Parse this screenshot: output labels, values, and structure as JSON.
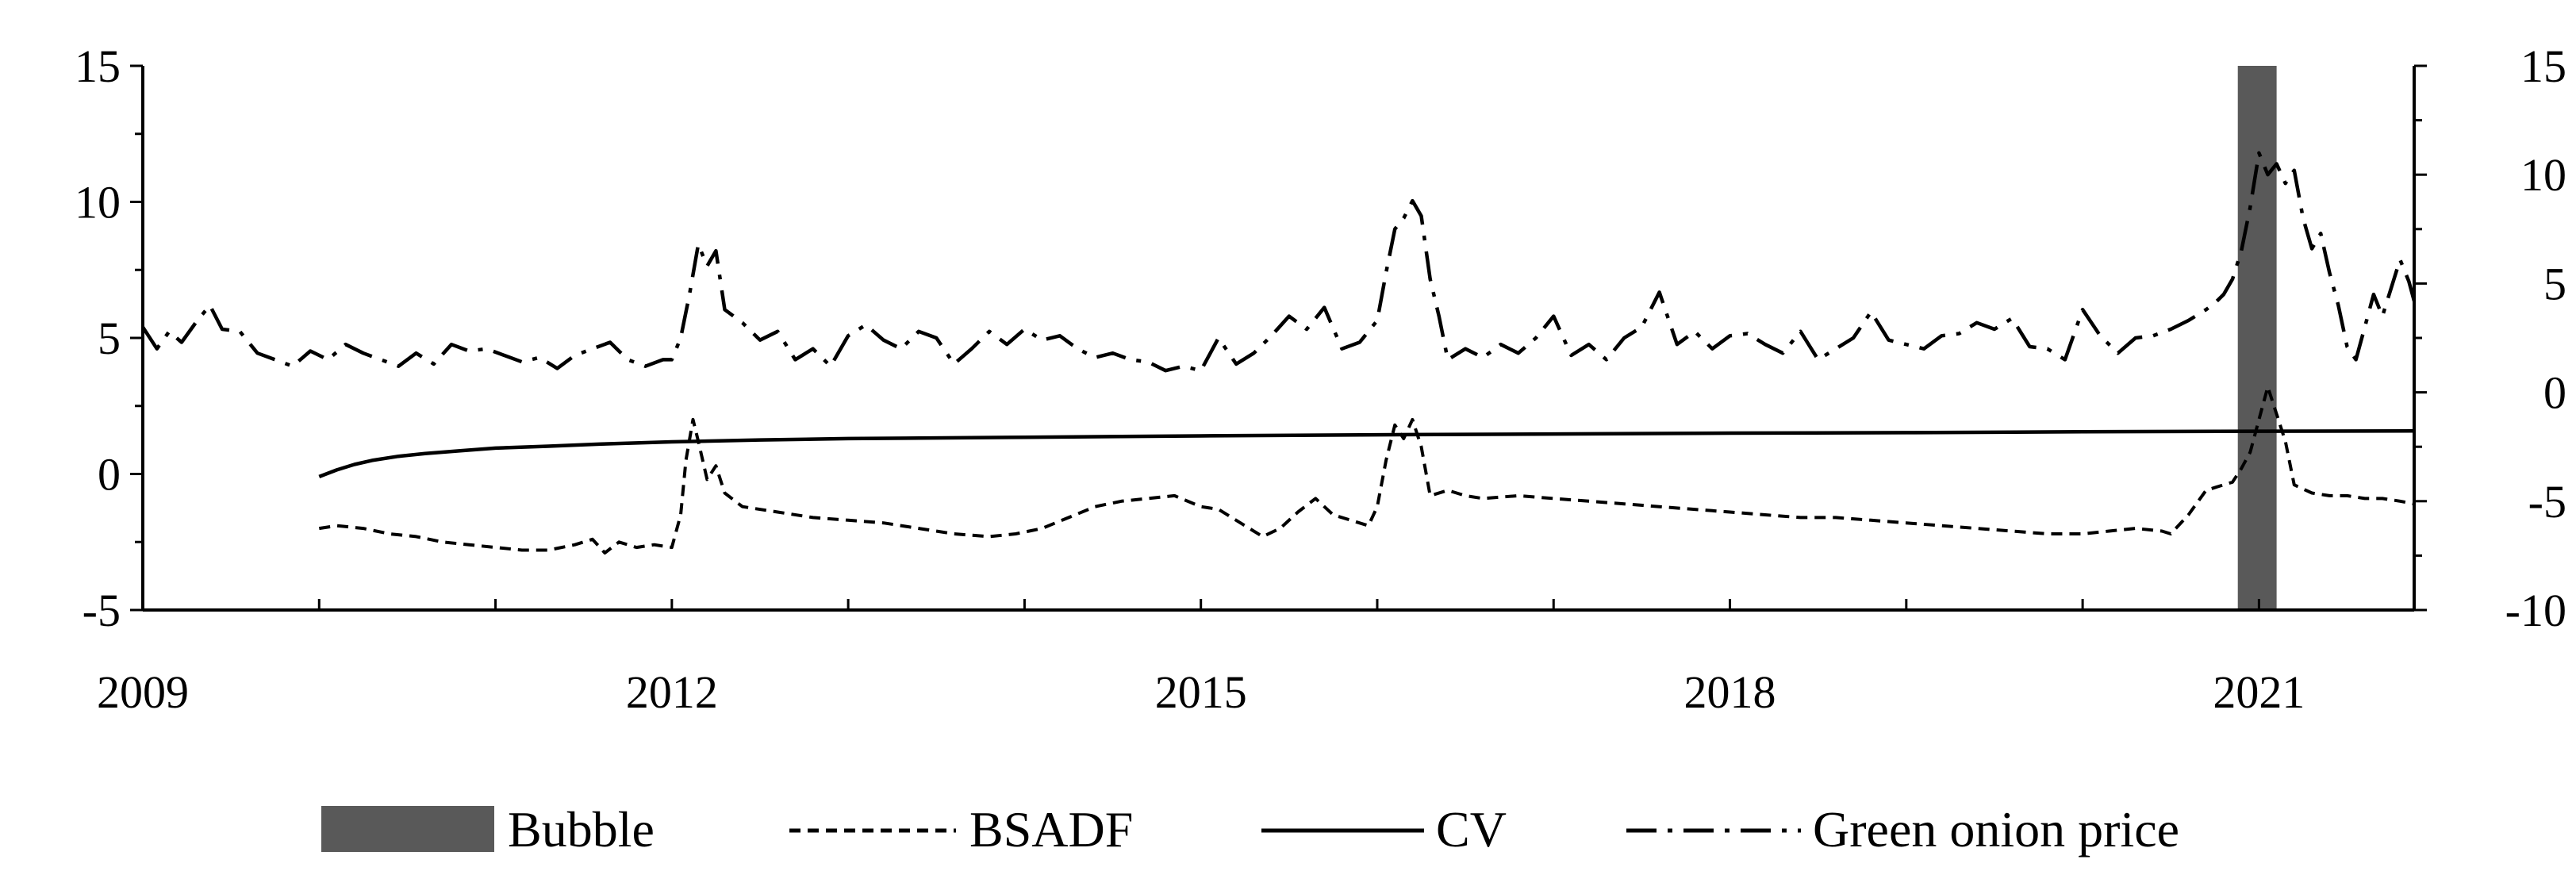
{
  "chart_data": {
    "type": "line",
    "title": "",
    "xlabel": "",
    "ylabel": "",
    "x_range": [
      2009.0,
      2021.88
    ],
    "ylim_left": [
      -5,
      15
    ],
    "ylim_right": [
      -10,
      15
    ],
    "yticks_left": [
      "15",
      "10",
      "5",
      "0",
      "-5"
    ],
    "yticks_right": [
      "15",
      "10",
      "5",
      "0",
      "-5",
      "-10"
    ],
    "xticks": [
      {
        "x": 2009,
        "label": "2009"
      },
      {
        "x": 2012,
        "label": "2012"
      },
      {
        "x": 2015,
        "label": "2015"
      },
      {
        "x": 2018,
        "label": "2018"
      },
      {
        "x": 2021,
        "label": "2021"
      }
    ],
    "minor_xticks": [
      2010,
      2011,
      2013,
      2014,
      2016,
      2017,
      2019,
      2020
    ],
    "grid": false,
    "legend_position": "bottom",
    "legend": [
      "Bubble",
      "BSADF",
      "CV",
      "Green onion price"
    ],
    "bubble": {
      "name": "Bubble",
      "x_start": 2020.88,
      "x_end": 2021.1,
      "color": "#595959"
    },
    "series": [
      {
        "name": "BSADF",
        "axis": "left",
        "style": "short-dash",
        "x": [
          2010.0,
          2010.1,
          2010.25,
          2010.4,
          2010.55,
          2010.7,
          2010.85,
          2011.0,
          2011.15,
          2011.3,
          2011.45,
          2011.55,
          2011.62,
          2011.7,
          2011.8,
          2011.9,
          2012.0,
          2012.05,
          2012.08,
          2012.12,
          2012.15,
          2012.2,
          2012.25,
          2012.3,
          2012.4,
          2012.6,
          2012.8,
          2013.0,
          2013.2,
          2013.4,
          2013.6,
          2013.8,
          2013.95,
          2014.1,
          2014.25,
          2014.4,
          2014.55,
          2014.7,
          2014.85,
          2015.0,
          2015.1,
          2015.25,
          2015.35,
          2015.45,
          2015.55,
          2015.65,
          2015.75,
          2015.85,
          2015.95,
          2016.0,
          2016.05,
          2016.1,
          2016.15,
          2016.2,
          2016.25,
          2016.3,
          2016.4,
          2016.5,
          2016.6,
          2016.8,
          2017.0,
          2017.2,
          2017.4,
          2017.6,
          2017.8,
          2018.0,
          2018.2,
          2018.4,
          2018.6,
          2018.8,
          2019.0,
          2019.2,
          2019.4,
          2019.6,
          2019.8,
          2020.0,
          2020.15,
          2020.3,
          2020.45,
          2020.5,
          2020.6,
          2020.7,
          2020.8,
          2020.85,
          2020.9,
          2020.95,
          2021.0,
          2021.05,
          2021.1,
          2021.15,
          2021.2,
          2021.3,
          2021.4,
          2021.5,
          2021.6,
          2021.7,
          2021.8,
          2021.88
        ],
        "values": [
          -2.0,
          -1.9,
          -2.0,
          -2.2,
          -2.3,
          -2.5,
          -2.6,
          -2.7,
          -2.8,
          -2.8,
          -2.6,
          -2.4,
          -2.9,
          -2.5,
          -2.7,
          -2.6,
          -2.7,
          -1.5,
          0.5,
          2.0,
          1.2,
          -0.2,
          0.3,
          -0.7,
          -1.2,
          -1.4,
          -1.6,
          -1.7,
          -1.8,
          -2.0,
          -2.2,
          -2.3,
          -2.2,
          -2.0,
          -1.6,
          -1.2,
          -1.0,
          -0.9,
          -0.8,
          -1.2,
          -1.3,
          -1.9,
          -2.3,
          -2.0,
          -1.4,
          -0.9,
          -1.5,
          -1.7,
          -1.9,
          -1.2,
          0.5,
          1.8,
          1.3,
          2.0,
          1.0,
          -0.8,
          -0.6,
          -0.8,
          -0.9,
          -0.8,
          -0.9,
          -1.0,
          -1.1,
          -1.2,
          -1.3,
          -1.4,
          -1.5,
          -1.6,
          -1.6,
          -1.7,
          -1.8,
          -1.9,
          -2.0,
          -2.1,
          -2.2,
          -2.2,
          -2.1,
          -2.0,
          -2.1,
          -2.2,
          -1.5,
          -0.6,
          -0.4,
          -0.3,
          0.2,
          0.8,
          2.0,
          3.2,
          2.2,
          1.2,
          -0.4,
          -0.7,
          -0.8,
          -0.8,
          -0.9,
          -0.9,
          -1.0,
          -1.1
        ]
      },
      {
        "name": "CV",
        "axis": "left",
        "style": "solid",
        "x": [
          2010.0,
          2010.1,
          2010.2,
          2010.3,
          2010.45,
          2010.6,
          2010.8,
          2011.0,
          2011.3,
          2011.6,
          2012.0,
          2012.5,
          2013.0,
          2014.0,
          2015.0,
          2016.0,
          2017.0,
          2018.0,
          2019.0,
          2020.0,
          2021.0,
          2021.88
        ],
        "values": [
          -0.1,
          0.15,
          0.35,
          0.5,
          0.65,
          0.75,
          0.85,
          0.95,
          1.02,
          1.1,
          1.18,
          1.25,
          1.3,
          1.35,
          1.4,
          1.44,
          1.47,
          1.5,
          1.52,
          1.55,
          1.57,
          1.58
        ]
      },
      {
        "name": "Green onion price",
        "axis": "right",
        "style": "long-dash-dot",
        "x": [
          2009.0,
          2009.08,
          2009.15,
          2009.22,
          2009.3,
          2009.38,
          2009.45,
          2009.55,
          2009.65,
          2009.75,
          2009.85,
          2009.95,
          2010.05,
          2010.15,
          2010.25,
          2010.35,
          2010.45,
          2010.55,
          2010.65,
          2010.75,
          2010.85,
          2010.95,
          2011.05,
          2011.15,
          2011.25,
          2011.35,
          2011.45,
          2011.55,
          2011.65,
          2011.75,
          2011.85,
          2011.95,
          2012.0,
          2012.05,
          2012.1,
          2012.15,
          2012.2,
          2012.25,
          2012.3,
          2012.4,
          2012.5,
          2012.6,
          2012.7,
          2012.8,
          2012.9,
          2013.0,
          2013.1,
          2013.2,
          2013.3,
          2013.4,
          2013.5,
          2013.6,
          2013.7,
          2013.8,
          2013.9,
          2014.0,
          2014.1,
          2014.2,
          2014.3,
          2014.4,
          2014.5,
          2014.6,
          2014.7,
          2014.8,
          2014.9,
          2015.0,
          2015.1,
          2015.2,
          2015.3,
          2015.4,
          2015.5,
          2015.6,
          2015.7,
          2015.8,
          2015.9,
          2016.0,
          2016.05,
          2016.1,
          2016.15,
          2016.2,
          2016.25,
          2016.3,
          2016.35,
          2016.4,
          2016.5,
          2016.6,
          2016.7,
          2016.8,
          2016.9,
          2017.0,
          2017.1,
          2017.2,
          2017.3,
          2017.4,
          2017.5,
          2017.6,
          2017.7,
          2017.8,
          2017.9,
          2018.0,
          2018.1,
          2018.2,
          2018.3,
          2018.4,
          2018.5,
          2018.6,
          2018.7,
          2018.8,
          2018.9,
          2019.0,
          2019.1,
          2019.2,
          2019.3,
          2019.4,
          2019.5,
          2019.6,
          2019.7,
          2019.8,
          2019.9,
          2020.0,
          2020.1,
          2020.2,
          2020.3,
          2020.4,
          2020.5,
          2020.6,
          2020.7,
          2020.75,
          2020.8,
          2020.85,
          2020.9,
          2020.95,
          2021.0,
          2021.05,
          2021.1,
          2021.15,
          2021.2,
          2021.25,
          2021.3,
          2021.35,
          2021.4,
          2021.45,
          2021.5,
          2021.55,
          2021.6,
          2021.65,
          2021.7,
          2021.75,
          2021.8,
          2021.85,
          2021.88
        ],
        "values": [
          3.0,
          2.0,
          2.8,
          2.3,
          3.2,
          4.0,
          2.9,
          2.8,
          1.8,
          1.5,
          1.2,
          1.9,
          1.5,
          2.2,
          1.8,
          1.5,
          1.2,
          1.8,
          1.3,
          2.2,
          1.9,
          2.0,
          1.7,
          1.4,
          1.6,
          1.1,
          1.7,
          2.0,
          2.3,
          1.5,
          1.2,
          1.5,
          1.5,
          2.5,
          4.5,
          6.8,
          5.8,
          6.5,
          3.8,
          3.2,
          2.4,
          2.8,
          1.5,
          2.0,
          1.2,
          2.6,
          3.1,
          2.4,
          2.0,
          2.8,
          2.5,
          1.3,
          2.0,
          2.8,
          2.2,
          2.9,
          2.4,
          2.6,
          2.0,
          1.6,
          1.8,
          1.5,
          1.4,
          1.0,
          1.2,
          1.0,
          2.5,
          1.3,
          1.8,
          2.6,
          3.5,
          2.9,
          3.9,
          2.0,
          2.3,
          3.3,
          5.5,
          7.5,
          8.0,
          8.8,
          8.1,
          5.2,
          3.5,
          1.5,
          2.0,
          1.6,
          2.2,
          1.8,
          2.5,
          3.5,
          1.7,
          2.2,
          1.5,
          2.5,
          3.0,
          4.6,
          2.2,
          2.8,
          2.0,
          2.6,
          2.7,
          2.2,
          1.8,
          2.8,
          1.5,
          2.0,
          2.5,
          3.7,
          2.4,
          2.2,
          2.0,
          2.6,
          2.7,
          3.2,
          2.9,
          3.4,
          2.1,
          2.0,
          1.5,
          3.8,
          2.6,
          1.8,
          2.5,
          2.6,
          2.9,
          3.3,
          3.8,
          4.1,
          4.5,
          5.2,
          6.5,
          8.5,
          11.0,
          10.0,
          10.5,
          9.6,
          10.2,
          8.0,
          6.6,
          7.3,
          5.5,
          4.0,
          2.1,
          1.5,
          3.0,
          4.5,
          3.5,
          4.8,
          6.1,
          5.1,
          4.2
        ]
      }
    ]
  }
}
